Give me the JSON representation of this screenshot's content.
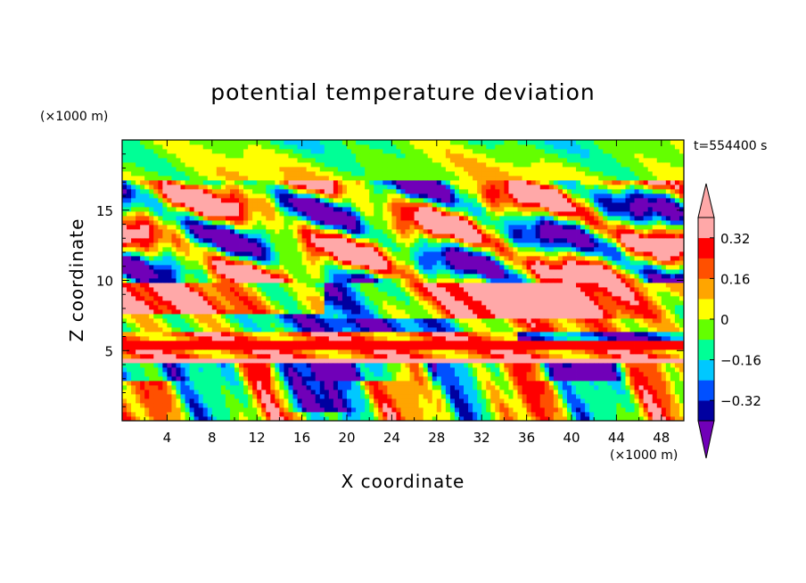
{
  "chart_data": {
    "type": "heatmap",
    "title": "potential temperature deviation",
    "xlabel": "X coordinate",
    "ylabel": "Z coordinate",
    "x_units": "(×1000 m)",
    "y_units": "(×1000 m)",
    "time_label": "t=554400 s",
    "xlim": [
      0,
      50
    ],
    "ylim": [
      0,
      20
    ],
    "x_ticks": [
      4,
      8,
      12,
      16,
      20,
      24,
      28,
      32,
      36,
      40,
      44,
      48
    ],
    "y_ticks": [
      5,
      10,
      15
    ],
    "colorbar": {
      "levels": [
        -0.4,
        -0.32,
        -0.24,
        -0.16,
        -0.08,
        0,
        0.08,
        0.16,
        0.24,
        0.32,
        0.4
      ],
      "tick_labels": [
        "0.32",
        "0.16",
        "0",
        "−0.16",
        "−0.32"
      ],
      "tick_values": [
        0.32,
        0.16,
        0,
        -0.16,
        -0.32
      ],
      "colors_low_to_high": [
        "#0000a0",
        "#0050ff",
        "#00c8ff",
        "#00ff96",
        "#64ff00",
        "#ffff00",
        "#ffa500",
        "#ff5000",
        "#ff0000",
        "#ffa8a8"
      ],
      "under_color": "#7000b8",
      "over_color": "#ffa8a8"
    },
    "layers": [
      {
        "z_range": [
          0,
          4
        ],
        "description": "vertical plumes, mixed values",
        "value_range": [
          -0.48,
          0.32
        ]
      },
      {
        "z_range": [
          4,
          5
        ],
        "value": 0.48
      },
      {
        "z_range": [
          5,
          6.5
        ],
        "value": 0.3
      },
      {
        "z_range": [
          6.5,
          10
        ],
        "value_range": [
          -0.48,
          0.48
        ]
      },
      {
        "z_range": [
          10,
          17
        ],
        "value_range": [
          -0.48,
          0.48
        ]
      },
      {
        "z_range": [
          17,
          20
        ],
        "value_range": [
          -0.08,
          0.16
        ]
      }
    ]
  }
}
